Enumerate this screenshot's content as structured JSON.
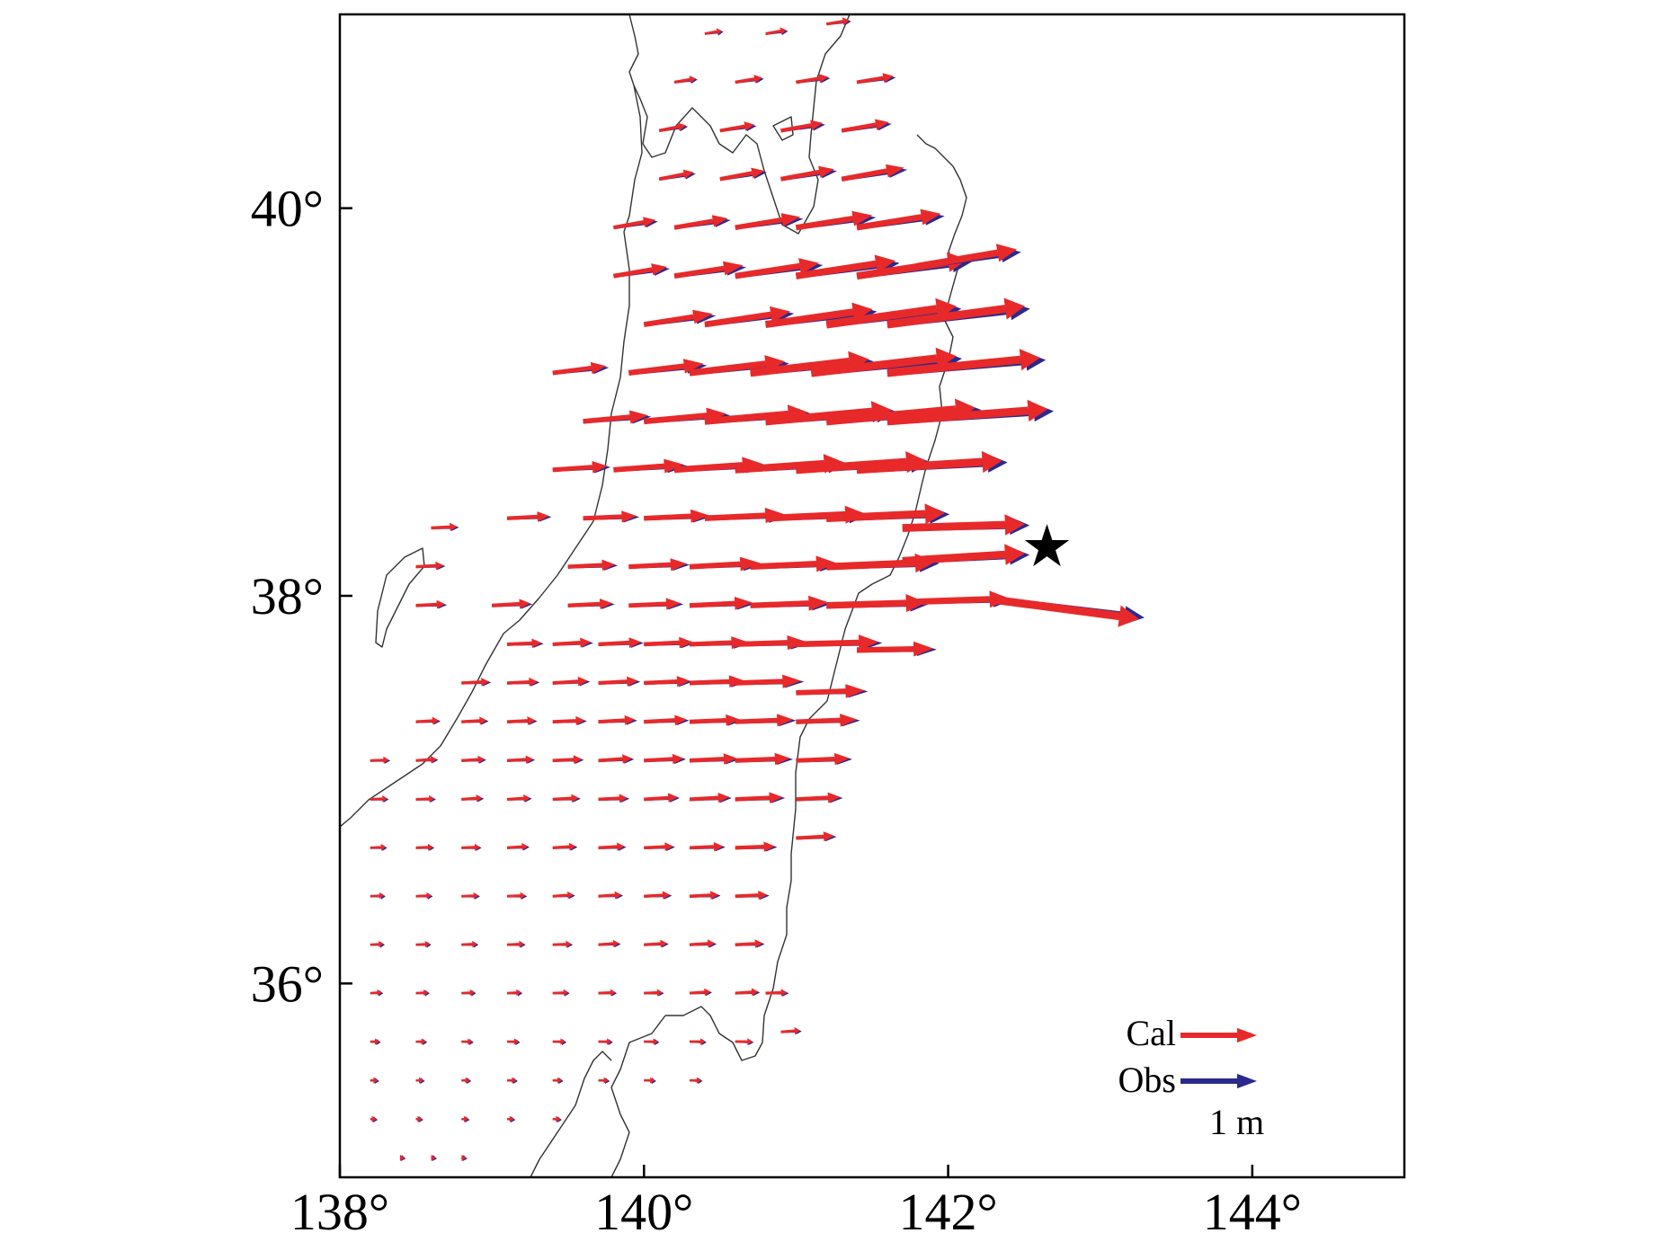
{
  "chart_data": {
    "type": "vector-map",
    "title": "",
    "xlabel": "",
    "ylabel": "",
    "xlim": [
      138,
      145
    ],
    "ylim": [
      35,
      41
    ],
    "x_ticks": [
      138,
      140,
      142,
      144
    ],
    "x_tick_labels": [
      "138°",
      "140°",
      "142°",
      "144°"
    ],
    "y_ticks": [
      36,
      38,
      40
    ],
    "y_tick_labels": [
      "36°",
      "38°",
      "40°"
    ],
    "scale_length_m": 1,
    "scale_label": "1 m",
    "colors": {
      "cal": "#e8292a",
      "obs": "#2b2a8c",
      "epicenter": "#000000"
    },
    "legend": {
      "position": "bottom-right",
      "entries": [
        {
          "label": "Cal",
          "color": "#e8292a"
        },
        {
          "label": "Obs",
          "color": "#2b2a8c"
        }
      ]
    },
    "epicenter": {
      "lon": 142.65,
      "lat": 38.25
    },
    "stations_note_columns": [
      "lon",
      "lat",
      "east_m",
      "north_m"
    ],
    "stations": [
      [
        138.4,
        35.1,
        0.05,
        0
      ],
      [
        138.6,
        35.1,
        0.06,
        0
      ],
      [
        138.8,
        35.1,
        0.06,
        0
      ],
      [
        138.2,
        35.3,
        0.08,
        0
      ],
      [
        138.5,
        35.3,
        0.08,
        0
      ],
      [
        138.8,
        35.3,
        0.09,
        0
      ],
      [
        139.1,
        35.3,
        0.09,
        0
      ],
      [
        139.4,
        35.3,
        0.1,
        0
      ],
      [
        138.2,
        35.5,
        0.1,
        0
      ],
      [
        138.5,
        35.5,
        0.1,
        0
      ],
      [
        138.8,
        35.5,
        0.11,
        0
      ],
      [
        139.1,
        35.5,
        0.12,
        0
      ],
      [
        139.4,
        35.5,
        0.12,
        0
      ],
      [
        139.7,
        35.5,
        0.13,
        0
      ],
      [
        140.0,
        35.5,
        0.14,
        0
      ],
      [
        140.3,
        35.5,
        0.15,
        0
      ],
      [
        138.2,
        35.7,
        0.12,
        0
      ],
      [
        138.5,
        35.7,
        0.13,
        0
      ],
      [
        138.8,
        35.7,
        0.14,
        0
      ],
      [
        139.1,
        35.7,
        0.15,
        0
      ],
      [
        139.4,
        35.7,
        0.16,
        0
      ],
      [
        139.7,
        35.7,
        0.17,
        0
      ],
      [
        140.0,
        35.7,
        0.18,
        0
      ],
      [
        140.3,
        35.7,
        0.2,
        0
      ],
      [
        140.6,
        35.7,
        0.22,
        0
      ],
      [
        140.9,
        35.75,
        0.25,
        0.02
      ],
      [
        138.2,
        35.95,
        0.15,
        0.01
      ],
      [
        138.5,
        35.95,
        0.16,
        0.01
      ],
      [
        138.8,
        35.95,
        0.17,
        0.01
      ],
      [
        139.1,
        35.95,
        0.18,
        0.01
      ],
      [
        139.4,
        35.95,
        0.2,
        0.01
      ],
      [
        139.7,
        35.95,
        0.22,
        0.01
      ],
      [
        140.0,
        35.95,
        0.24,
        0.01
      ],
      [
        140.3,
        35.95,
        0.27,
        0.02
      ],
      [
        140.6,
        35.95,
        0.3,
        0.02
      ],
      [
        140.8,
        35.95,
        0.28,
        0.01
      ],
      [
        138.2,
        36.2,
        0.17,
        0.01
      ],
      [
        138.5,
        36.2,
        0.18,
        0.01
      ],
      [
        138.8,
        36.2,
        0.2,
        0.01
      ],
      [
        139.1,
        36.2,
        0.22,
        0.01
      ],
      [
        139.4,
        36.2,
        0.24,
        0.01
      ],
      [
        139.7,
        36.2,
        0.27,
        0.02
      ],
      [
        140.0,
        36.2,
        0.3,
        0.02
      ],
      [
        140.3,
        36.2,
        0.33,
        0.02
      ],
      [
        140.6,
        36.2,
        0.36,
        0.02
      ],
      [
        138.2,
        36.45,
        0.18,
        0.01
      ],
      [
        138.5,
        36.45,
        0.2,
        0.01
      ],
      [
        138.8,
        36.45,
        0.22,
        0.01
      ],
      [
        139.1,
        36.45,
        0.24,
        0.01
      ],
      [
        139.4,
        36.45,
        0.27,
        0.02
      ],
      [
        139.7,
        36.45,
        0.3,
        0.02
      ],
      [
        140.0,
        36.45,
        0.34,
        0.02
      ],
      [
        140.3,
        36.45,
        0.38,
        0.02
      ],
      [
        140.6,
        36.45,
        0.42,
        0.02
      ],
      [
        138.2,
        36.7,
        0.2,
        0.01
      ],
      [
        138.5,
        36.7,
        0.22,
        0.01
      ],
      [
        138.8,
        36.7,
        0.24,
        0.01
      ],
      [
        139.1,
        36.7,
        0.27,
        0.02
      ],
      [
        139.4,
        36.7,
        0.3,
        0.02
      ],
      [
        139.7,
        36.7,
        0.34,
        0.02
      ],
      [
        140.0,
        36.7,
        0.38,
        0.02
      ],
      [
        140.3,
        36.7,
        0.44,
        0.02
      ],
      [
        140.6,
        36.7,
        0.52,
        0.02
      ],
      [
        141.0,
        36.75,
        0.5,
        0.03
      ],
      [
        138.2,
        36.95,
        0.22,
        0.01
      ],
      [
        138.5,
        36.95,
        0.24,
        0.01
      ],
      [
        138.8,
        36.95,
        0.27,
        0.02
      ],
      [
        139.1,
        36.95,
        0.3,
        0.02
      ],
      [
        139.4,
        36.95,
        0.34,
        0.02
      ],
      [
        139.7,
        36.95,
        0.38,
        0.02
      ],
      [
        140.0,
        36.95,
        0.44,
        0.03
      ],
      [
        140.3,
        36.95,
        0.52,
        0.03
      ],
      [
        140.6,
        36.95,
        0.62,
        0.03
      ],
      [
        141.0,
        36.95,
        0.58,
        0.03
      ],
      [
        138.2,
        37.15,
        0.24,
        0.01
      ],
      [
        138.5,
        37.15,
        0.27,
        0.02
      ],
      [
        138.8,
        37.15,
        0.3,
        0.02
      ],
      [
        139.1,
        37.15,
        0.34,
        0.02
      ],
      [
        139.4,
        37.15,
        0.38,
        0.02
      ],
      [
        139.7,
        37.15,
        0.44,
        0.03
      ],
      [
        140.0,
        37.15,
        0.52,
        0.03
      ],
      [
        140.3,
        37.15,
        0.62,
        0.03
      ],
      [
        140.6,
        37.15,
        0.72,
        0.03
      ],
      [
        141.0,
        37.15,
        0.7,
        0.03
      ],
      [
        138.5,
        37.35,
        0.3,
        0.02
      ],
      [
        138.8,
        37.35,
        0.33,
        0.02
      ],
      [
        139.1,
        37.35,
        0.37,
        0.02
      ],
      [
        139.4,
        37.35,
        0.42,
        0.02
      ],
      [
        139.7,
        37.35,
        0.48,
        0.03
      ],
      [
        140.0,
        37.35,
        0.56,
        0.03
      ],
      [
        140.3,
        37.35,
        0.66,
        0.03
      ],
      [
        140.6,
        37.35,
        0.76,
        0.03
      ],
      [
        141.0,
        37.35,
        0.8,
        0.03
      ],
      [
        138.8,
        37.55,
        0.36,
        0.02
      ],
      [
        139.1,
        37.55,
        0.4,
        0.02
      ],
      [
        139.4,
        37.55,
        0.46,
        0.03
      ],
      [
        139.7,
        37.55,
        0.52,
        0.03
      ],
      [
        140.0,
        37.55,
        0.6,
        0.03
      ],
      [
        140.3,
        37.55,
        0.72,
        0.03
      ],
      [
        140.6,
        37.55,
        0.86,
        0.03
      ],
      [
        141.0,
        37.5,
        0.9,
        0.03
      ],
      [
        139.1,
        37.75,
        0.45,
        0.02
      ],
      [
        139.4,
        37.75,
        0.5,
        0.03
      ],
      [
        139.7,
        37.75,
        0.56,
        0.03
      ],
      [
        140.0,
        37.75,
        0.64,
        0.03
      ],
      [
        140.3,
        37.75,
        0.76,
        0.03
      ],
      [
        140.6,
        37.75,
        0.94,
        0.03
      ],
      [
        141.0,
        37.75,
        1.08,
        0.03
      ],
      [
        141.4,
        37.72,
        1.0,
        0.02
      ],
      [
        138.5,
        37.95,
        0.38,
        0.02
      ],
      [
        139.0,
        37.95,
        0.5,
        0.03
      ],
      [
        139.5,
        37.95,
        0.58,
        0.03
      ],
      [
        139.9,
        37.95,
        0.68,
        0.03
      ],
      [
        140.3,
        37.95,
        0.82,
        0.04
      ],
      [
        140.7,
        37.95,
        1.02,
        0.04
      ],
      [
        141.2,
        37.95,
        1.3,
        0.04
      ],
      [
        141.8,
        37.97,
        1.2,
        0.04
      ],
      [
        138.5,
        38.15,
        0.36,
        0.02
      ],
      [
        139.5,
        38.15,
        0.62,
        0.03
      ],
      [
        139.9,
        38.15,
        0.76,
        0.04
      ],
      [
        140.3,
        38.15,
        0.92,
        0.05
      ],
      [
        140.7,
        38.15,
        1.12,
        0.05
      ],
      [
        141.2,
        38.15,
        1.42,
        0.06
      ],
      [
        141.7,
        38.18,
        1.6,
        0.1
      ],
      [
        142.3,
        37.98,
        1.9,
        -0.25
      ],
      [
        138.6,
        38.35,
        0.34,
        0.02
      ],
      [
        139.1,
        38.4,
        0.55,
        0.03
      ],
      [
        139.6,
        38.4,
        0.7,
        0.03
      ],
      [
        140.0,
        38.4,
        0.85,
        0.04
      ],
      [
        140.4,
        38.4,
        1.05,
        0.05
      ],
      [
        140.8,
        38.4,
        1.3,
        0.06
      ],
      [
        141.2,
        38.4,
        1.55,
        0.07
      ],
      [
        141.7,
        38.35,
        1.6,
        0.05
      ],
      [
        139.4,
        38.65,
        0.72,
        0.05
      ],
      [
        139.8,
        38.65,
        0.92,
        0.07
      ],
      [
        140.2,
        38.65,
        1.15,
        0.08
      ],
      [
        140.6,
        38.65,
        1.42,
        0.1
      ],
      [
        141.0,
        38.65,
        1.7,
        0.12
      ],
      [
        141.4,
        38.65,
        1.9,
        0.12
      ],
      [
        139.6,
        38.9,
        0.85,
        0.08
      ],
      [
        140.0,
        38.9,
        1.08,
        0.1
      ],
      [
        140.4,
        38.9,
        1.35,
        0.12
      ],
      [
        140.8,
        38.9,
        1.65,
        0.15
      ],
      [
        141.2,
        38.9,
        1.95,
        0.18
      ],
      [
        141.6,
        38.9,
        2.1,
        0.16
      ],
      [
        139.4,
        39.15,
        0.7,
        0.09
      ],
      [
        139.9,
        39.15,
        0.98,
        0.12
      ],
      [
        140.3,
        39.15,
        1.25,
        0.15
      ],
      [
        140.7,
        39.15,
        1.55,
        0.18
      ],
      [
        141.1,
        39.15,
        1.9,
        0.22
      ],
      [
        141.6,
        39.15,
        2.0,
        0.2
      ],
      [
        140.0,
        39.4,
        0.9,
        0.14
      ],
      [
        140.4,
        39.4,
        1.12,
        0.17
      ],
      [
        140.8,
        39.4,
        1.4,
        0.2
      ],
      [
        141.2,
        39.4,
        1.7,
        0.24
      ],
      [
        141.6,
        39.4,
        1.8,
        0.24
      ],
      [
        139.8,
        39.65,
        0.7,
        0.12
      ],
      [
        140.2,
        39.65,
        0.9,
        0.14
      ],
      [
        140.6,
        39.65,
        1.1,
        0.17
      ],
      [
        141.0,
        39.65,
        1.3,
        0.2
      ],
      [
        141.4,
        39.65,
        1.45,
        0.22
      ],
      [
        141.8,
        39.7,
        1.3,
        0.22
      ],
      [
        139.8,
        39.9,
        0.55,
        0.1
      ],
      [
        140.2,
        39.9,
        0.7,
        0.12
      ],
      [
        140.6,
        39.9,
        0.85,
        0.14
      ],
      [
        141.0,
        39.9,
        1.0,
        0.16
      ],
      [
        141.4,
        39.9,
        1.1,
        0.18
      ],
      [
        140.1,
        40.15,
        0.45,
        0.09
      ],
      [
        140.5,
        40.15,
        0.58,
        0.11
      ],
      [
        140.9,
        40.15,
        0.7,
        0.13
      ],
      [
        141.3,
        40.15,
        0.82,
        0.15
      ],
      [
        140.1,
        40.4,
        0.35,
        0.07
      ],
      [
        140.5,
        40.4,
        0.45,
        0.08
      ],
      [
        140.9,
        40.4,
        0.55,
        0.1
      ],
      [
        141.3,
        40.4,
        0.62,
        0.11
      ],
      [
        140.2,
        40.65,
        0.28,
        0.05
      ],
      [
        140.6,
        40.65,
        0.35,
        0.06
      ],
      [
        141.0,
        40.65,
        0.42,
        0.07
      ],
      [
        141.4,
        40.65,
        0.48,
        0.08
      ],
      [
        140.4,
        40.9,
        0.22,
        0.04
      ],
      [
        140.8,
        40.9,
        0.27,
        0.05
      ],
      [
        141.2,
        40.95,
        0.3,
        0.05
      ]
    ]
  }
}
